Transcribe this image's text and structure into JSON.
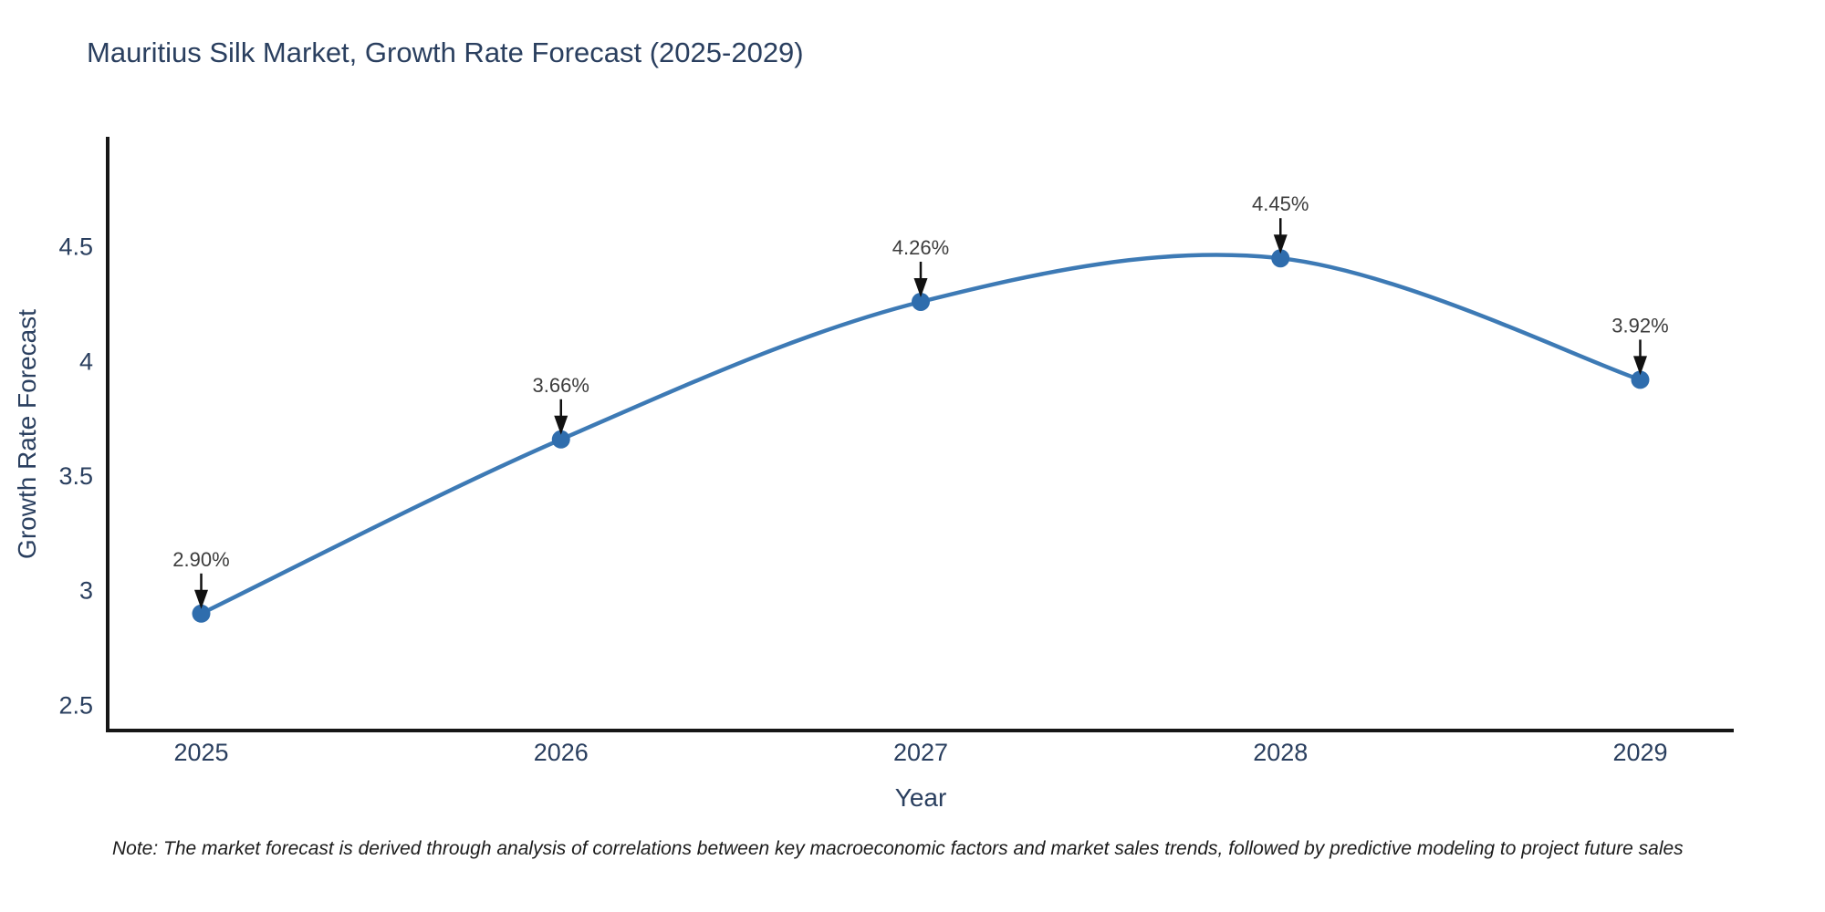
{
  "title": "Mauritius Silk Market, Growth Rate Forecast (2025-2029)",
  "note": "Note: The market forecast is derived through analysis of correlations between key macroeconomic factors and market sales trends, followed by predictive modeling to project future sales",
  "chart_data": {
    "type": "line",
    "line_shape": "spline",
    "title": "Mauritius Silk Market, Growth Rate Forecast (2025-2029)",
    "xlabel": "Year",
    "ylabel": "Growth Rate Forecast",
    "x": [
      2025,
      2026,
      2027,
      2028,
      2029
    ],
    "y": [
      2.9,
      3.66,
      4.26,
      4.45,
      3.92
    ],
    "point_labels": [
      "2.90%",
      "3.66%",
      "4.26%",
      "4.45%",
      "3.92%"
    ],
    "xticks": [
      2025,
      2026,
      2027,
      2028,
      2029
    ],
    "xtick_labels": [
      "2025",
      "2026",
      "2027",
      "2028",
      "2029"
    ],
    "yticks": [
      2.5,
      3,
      3.5,
      4,
      4.5
    ],
    "ytick_labels": [
      "2.5",
      "3",
      "3.5",
      "4",
      "4.5"
    ],
    "xlim": [
      2024.74,
      2029.26
    ],
    "ylim": [
      2.39,
      4.98
    ],
    "grid": false,
    "legend": false,
    "annotations_have_arrows": true,
    "line_color": "#3d7ab5",
    "marker_color": "#2f6dad",
    "axis_color": "#161616",
    "tick_color": "#2a3f5f",
    "annotation_text_color": "#3d3d3d",
    "annotation_arrow_color": "#111111"
  }
}
